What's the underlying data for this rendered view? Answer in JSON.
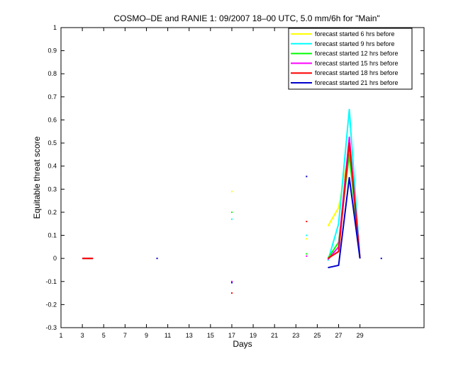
{
  "chart_data": {
    "type": "line",
    "title": "COSMO–DE and RANIE 1: 09/2007 18–00 UTC, 5.0 mm/6h for \"Main\"",
    "xlabel": "Days",
    "ylabel": "Equitable threat score",
    "xlim": [
      1,
      35
    ],
    "ylim": [
      -0.3,
      1
    ],
    "xticks": [
      1,
      3,
      5,
      7,
      9,
      11,
      13,
      15,
      17,
      19,
      21,
      23,
      25,
      27,
      29
    ],
    "yticks": [
      -0.3,
      -0.2,
      -0.1,
      0,
      0.1,
      0.2,
      0.3,
      0.4,
      0.5,
      0.6,
      0.7,
      0.8,
      0.9,
      1
    ],
    "grid": false,
    "legend_position": "top-right",
    "series": [
      {
        "name": "forecast started 6 hrs before",
        "color": "#ffff00",
        "points": [
          [
            3,
            0
          ],
          [
            4,
            0
          ],
          [
            17,
            0.29
          ],
          [
            24,
            0.085
          ],
          [
            26,
            0.14
          ],
          [
            27,
            0.22
          ],
          [
            28,
            0.47
          ],
          [
            29,
            0
          ]
        ]
      },
      {
        "name": "forecast started 9 hrs before",
        "color": "#00ffff",
        "points": [
          [
            3,
            0
          ],
          [
            4,
            0
          ],
          [
            17,
            0.17
          ],
          [
            24,
            0.1
          ],
          [
            26,
            -0.01
          ],
          [
            27,
            0.15
          ],
          [
            28,
            0.645
          ],
          [
            29,
            0
          ]
        ]
      },
      {
        "name": "forecast started 12 hrs before",
        "color": "#00ff00",
        "points": [
          [
            3,
            0
          ],
          [
            4,
            0
          ],
          [
            17,
            0.2
          ],
          [
            24,
            0.02
          ],
          [
            26,
            0
          ],
          [
            27,
            0.07
          ],
          [
            28,
            0.45
          ],
          [
            29,
            0
          ]
        ]
      },
      {
        "name": "forecast started 15 hrs before",
        "color": "#ff00ff",
        "points": [
          [
            3,
            0
          ],
          [
            4,
            0
          ],
          [
            17,
            -0.1
          ],
          [
            24,
            0.01
          ],
          [
            26,
            -0.005
          ],
          [
            27,
            0.05
          ],
          [
            28,
            0.525
          ],
          [
            29,
            0
          ]
        ]
      },
      {
        "name": "forecast started 18 hrs before",
        "color": "#ff0000",
        "points": [
          [
            3,
            0
          ],
          [
            4,
            0
          ],
          [
            17,
            -0.15
          ],
          [
            24,
            0.16
          ],
          [
            26,
            0
          ],
          [
            27,
            0.03
          ],
          [
            28,
            0.5
          ],
          [
            29,
            0
          ]
        ]
      },
      {
        "name": "forecast started 21 hrs before",
        "color": "#0000cc",
        "points": [
          [
            10,
            0
          ],
          [
            17,
            -0.105
          ],
          [
            24,
            0.355
          ],
          [
            26,
            -0.04
          ],
          [
            27,
            -0.03
          ],
          [
            28,
            0.35
          ],
          [
            29,
            0
          ],
          [
            31,
            0
          ]
        ]
      }
    ]
  }
}
